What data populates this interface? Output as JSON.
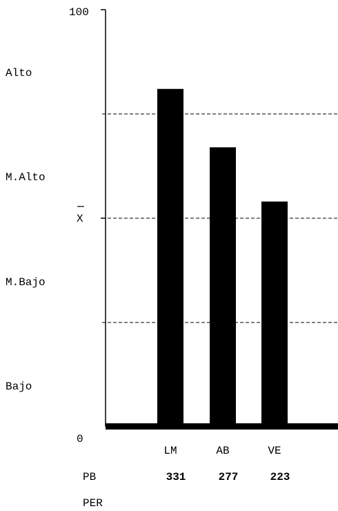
{
  "chart_data": {
    "type": "bar",
    "categories": [
      "LM",
      "AB",
      "VE"
    ],
    "values": [
      81,
      67,
      54
    ],
    "ylim": [
      0,
      100
    ],
    "y_ticks": {
      "top": "100",
      "bottom": "0"
    },
    "mean_label": "X",
    "mean_value": 50,
    "reference_lines": [
      75,
      50,
      25
    ],
    "bands": [
      "Alto",
      "M.Alto",
      "M.Bajo",
      "Bajo"
    ],
    "rows": [
      {
        "label": "PB",
        "values": [
          "331",
          "277",
          "223"
        ]
      },
      {
        "label": "PER",
        "values": []
      }
    ],
    "grid": false,
    "bar_color": "#000000"
  }
}
